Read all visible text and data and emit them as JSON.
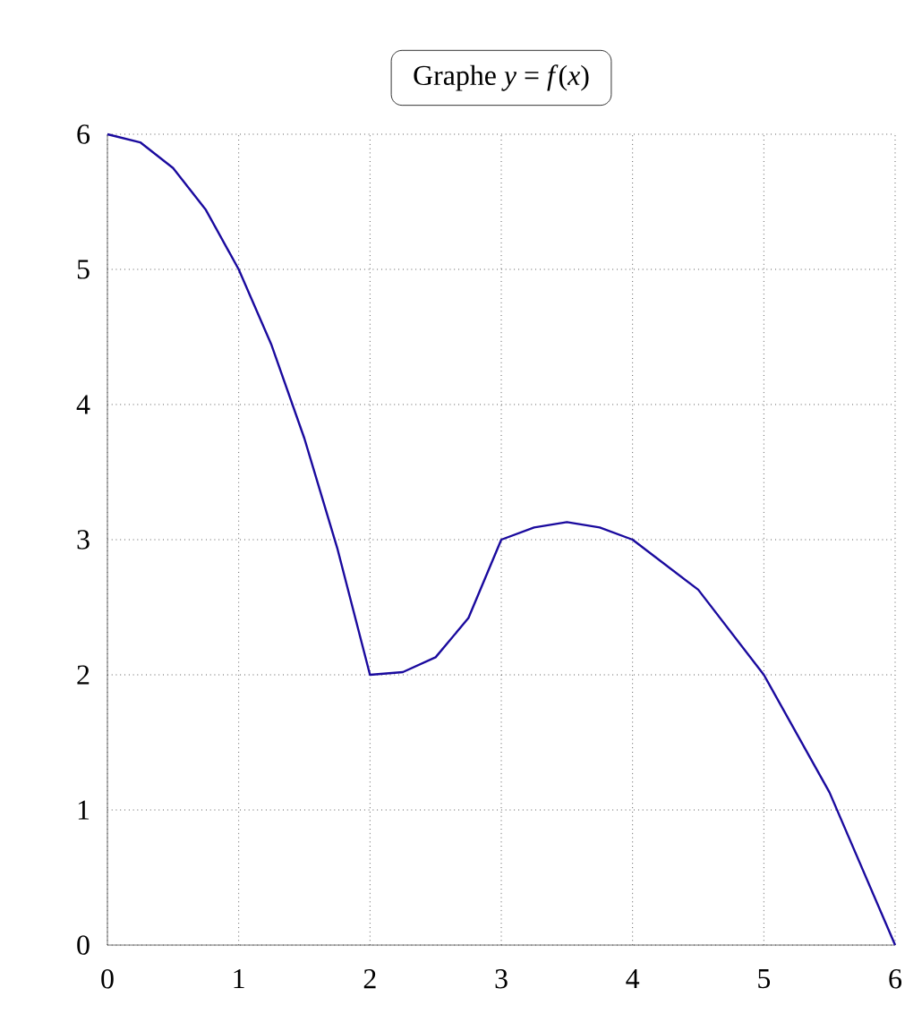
{
  "chart_data": {
    "type": "line",
    "title": "Graphe *y* = *f*(*x*)",
    "x": [
      0,
      0.25,
      0.5,
      0.75,
      1,
      1.25,
      1.5,
      1.75,
      2,
      2.25,
      2.5,
      2.75,
      3,
      3.25,
      3.5,
      3.75,
      4,
      4.5,
      5,
      5.5,
      6
    ],
    "series": [
      {
        "color": "#1a0a9e",
        "values": [
          6,
          5.94,
          5.75,
          5.44,
          5,
          4.44,
          3.75,
          2.94,
          2,
          2.02,
          2.13,
          2.42,
          3,
          3.09,
          3.13,
          3.09,
          3,
          2.63,
          2,
          1.13,
          0
        ]
      }
    ],
    "xlim": [
      0,
      6
    ],
    "ylim": [
      0,
      6
    ],
    "xticks": [
      0,
      1,
      2,
      3,
      4,
      5,
      6
    ],
    "yticks": [
      0,
      1,
      2,
      3,
      4,
      5,
      6
    ],
    "grid": true,
    "marker": "none",
    "line_style": "solid"
  }
}
